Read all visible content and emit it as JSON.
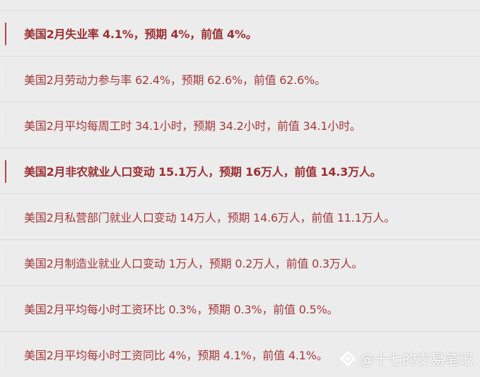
{
  "items": [
    {
      "text": "美国2月失业率 4.1%，预期 4%，前值 4%。",
      "bold": true
    },
    {
      "text": "美国2月劳动力参与率 62.4%，预期 62.6%，前值 62.6%。",
      "bold": false
    },
    {
      "text": "美国2月平均每周工时 34.1小时，预期 34.2小时，前值 34.1小时。",
      "bold": false
    },
    {
      "text": "美国2月非农就业人口变动 15.1万人，预期 16万人，前值 14.3万人。",
      "bold": true
    },
    {
      "text": "美国2月私营部门就业人口变动 14万人，预期 14.6万人，前值 11.1万人。",
      "bold": false
    },
    {
      "text": "美国2月制造业就业人口变动 1万人，预期 0.2万人，前值 0.3万人。",
      "bold": false
    },
    {
      "text": "美国2月平均每小时工资环比 0.3%，预期 0.3%，前值 0.5%。",
      "bold": false
    },
    {
      "text": "美国2月平均每小时工资同比 4%，预期 4.1%，前值 4.1%。",
      "bold": false
    }
  ],
  "watermark": "@十七的交易笔记",
  "colors": {
    "text": "#a4393c",
    "accent_bar": "#b84446",
    "background": "#ececec"
  }
}
